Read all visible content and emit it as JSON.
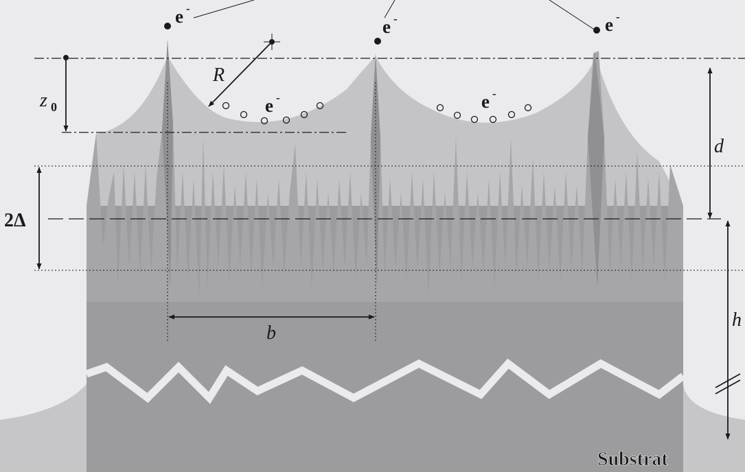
{
  "labels": {
    "electron_top_1": "e",
    "electron_top_2": "e",
    "electron_top_3": "e",
    "electron_mid_1": "e",
    "electron_mid_2": "e",
    "superscript_minus": "-",
    "radius": "R",
    "z0_main": "z",
    "z0_sub": "0",
    "d": "d",
    "two_delta": "2Δ",
    "b": "b",
    "h": "h",
    "substrate": "Substrat"
  },
  "colors": {
    "background": "#ebebed",
    "field_cusp": "#c4c4c6",
    "spike_layer": "#a8a8aa",
    "bulk": "#9c9c9e",
    "zigzag_break": "#ebebed",
    "lines": "#1a1a1a"
  }
}
